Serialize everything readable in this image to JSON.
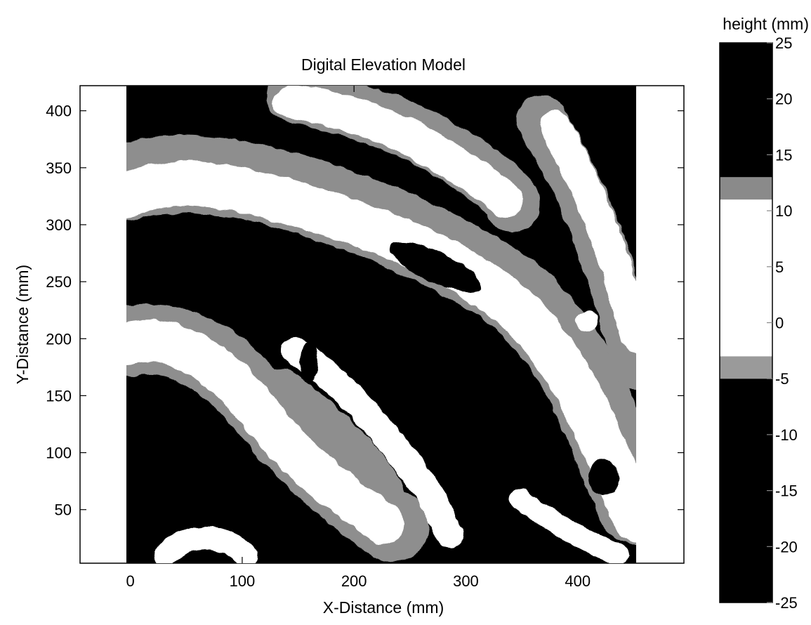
{
  "chart_data": {
    "type": "heatmap",
    "title": "Digital Elevation Model",
    "xlabel": "X-Distance (mm)",
    "ylabel": "Y-Distance (mm)",
    "xlim": [
      -45,
      495
    ],
    "ylim": [
      3,
      422
    ],
    "x_ticks": [
      0,
      100,
      200,
      300,
      400
    ],
    "y_ticks": [
      50,
      100,
      150,
      200,
      250,
      300,
      350,
      400
    ],
    "data_extent": {
      "x": [
        0,
        450
      ],
      "y": [
        3,
        422
      ]
    },
    "colormap": "banded grayscale (black / gray / white)",
    "colorbar": {
      "label": "height (mm)",
      "range": [
        -25,
        25
      ],
      "ticks": [
        -25,
        -20,
        -15,
        -10,
        -5,
        0,
        5,
        10,
        15,
        20,
        25
      ],
      "bands": [
        {
          "from": -25,
          "to": -5,
          "color": "#000000"
        },
        {
          "from": -5,
          "to": -3,
          "color": "#9a9a9a"
        },
        {
          "from": -3,
          "to": 11,
          "color": "#ffffff"
        },
        {
          "from": 11,
          "to": 13,
          "color": "#8a8a8a"
        },
        {
          "from": 13,
          "to": 25,
          "color": "#000000"
        }
      ]
    },
    "grid": false
  }
}
